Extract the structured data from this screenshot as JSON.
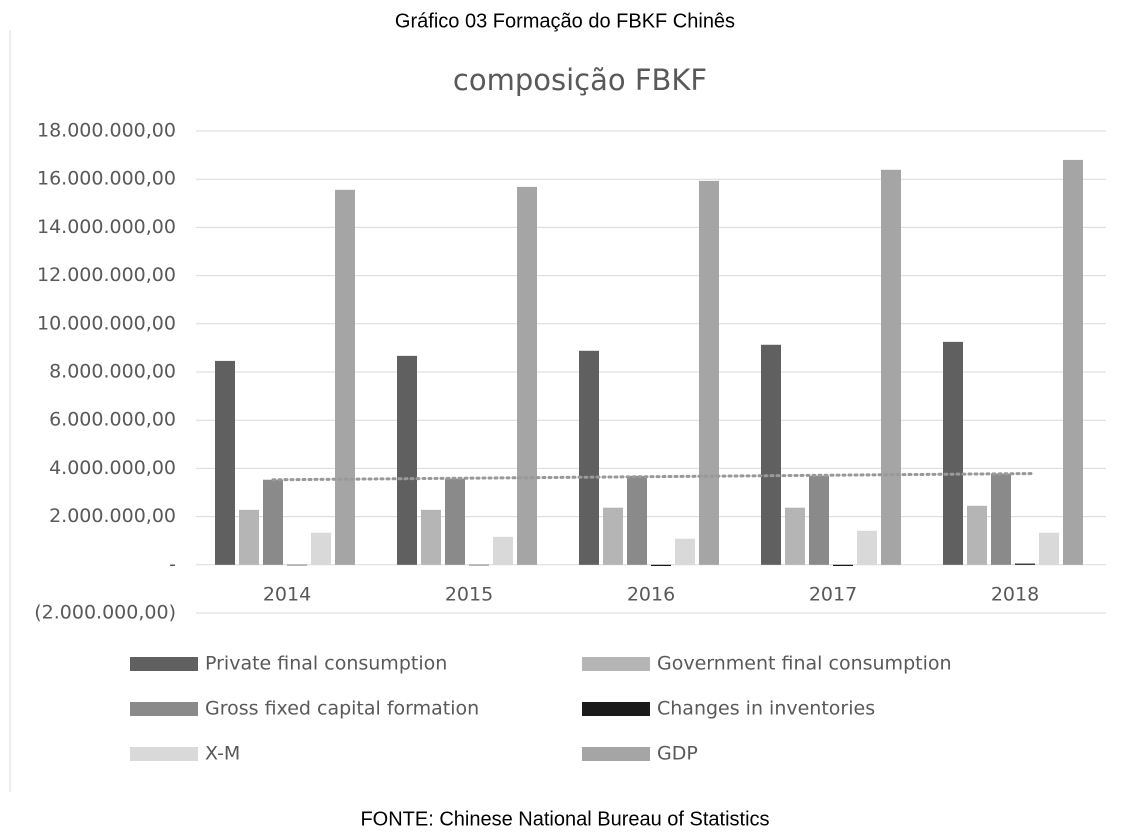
{
  "heading": "Gráfico 03 Formação do FBKF Chinês",
  "source": "FONTE: Chinese National Bureau of Statistics",
  "chart_data": {
    "type": "bar",
    "title": "composição FBKF",
    "categories": [
      "2014",
      "2015",
      "2016",
      "2017",
      "2018"
    ],
    "series": [
      {
        "name": "Private final consumption",
        "color": "#606060",
        "values": [
          8460000,
          8670000,
          8880000,
          9130000,
          9250000
        ]
      },
      {
        "name": "Government final consumption",
        "color": "#b5b5b5",
        "values": [
          2280000,
          2280000,
          2370000,
          2370000,
          2450000
        ]
      },
      {
        "name": "Gross fixed capital formation",
        "color": "#8a8a8a",
        "values": [
          3530000,
          3570000,
          3690000,
          3690000,
          3780000
        ]
      },
      {
        "name": "Changes in inventories",
        "color": "#1a1a1a",
        "values": [
          0,
          0,
          -50000,
          -50000,
          50000
        ]
      },
      {
        "name": "X-M",
        "color": "#d9d9d9",
        "values": [
          1330000,
          1160000,
          1080000,
          1410000,
          1330000
        ]
      },
      {
        "name": "GDP",
        "color": "#a5a5a5",
        "values": [
          15560000,
          15680000,
          15930000,
          16390000,
          16800000
        ]
      }
    ],
    "ylim": [
      -2000000,
      18000000
    ],
    "yticks": [
      {
        "value": -2000000,
        "label": "(2.000.000,00)"
      },
      {
        "value": 0,
        "label": "-"
      },
      {
        "value": 2000000,
        "label": "2.000.000,00"
      },
      {
        "value": 4000000,
        "label": "4.000.000,00"
      },
      {
        "value": 6000000,
        "label": "6.000.000,00"
      },
      {
        "value": 8000000,
        "label": "8.000.000,00"
      },
      {
        "value": 10000000,
        "label": "10.000.000,00"
      },
      {
        "value": 12000000,
        "label": "12.000.000,00"
      },
      {
        "value": 14000000,
        "label": "14.000.000,00"
      },
      {
        "value": 16000000,
        "label": "16.000.000,00"
      },
      {
        "value": 18000000,
        "label": "18.000.000,00"
      }
    ],
    "grid": true,
    "legend": "bottom",
    "trendline_series": 2
  }
}
